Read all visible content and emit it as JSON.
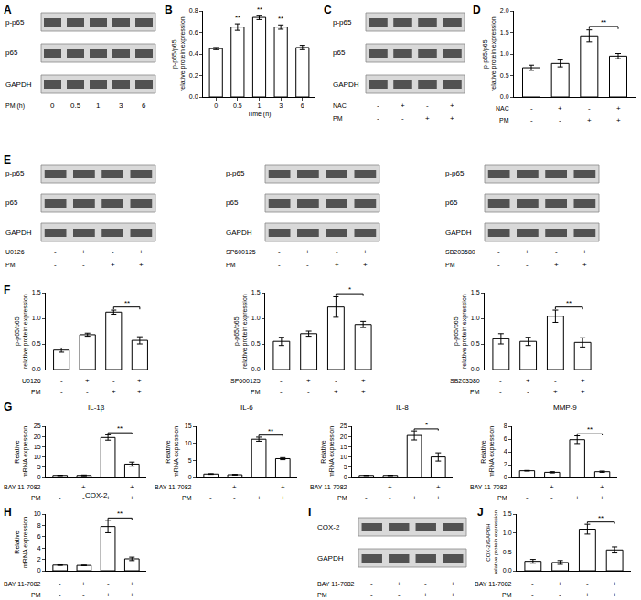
{
  "chart_data": [
    {
      "panel": "B",
      "type": "bar",
      "categories": [
        "0",
        "0.5",
        "1",
        "3",
        "6"
      ],
      "values": [
        0.45,
        0.65,
        0.74,
        0.65,
        0.46
      ],
      "errors": [
        0.01,
        0.03,
        0.02,
        0.02,
        0.02
      ],
      "color": "#ffffff",
      "ylim": [
        0,
        0.8
      ],
      "yticks": [
        {
          "value": 0,
          "label": "0.0"
        },
        {
          "value": 0.2,
          "label": "0.2"
        },
        {
          "value": 0.4,
          "label": "0.4"
        },
        {
          "value": 0.6,
          "label": "0.6"
        },
        {
          "value": 0.8,
          "label": "0.8"
        }
      ],
      "y_label": "p-p65/p65\nrelative protein expression",
      "x_label": "Time (h)",
      "significance": [
        {
          "category": 1,
          "label": "**"
        },
        {
          "category": 2,
          "label": "**"
        },
        {
          "category": 3,
          "label": "**"
        }
      ],
      "grid": false
    },
    {
      "panel": "D",
      "type": "bar",
      "values": [
        0.68,
        0.78,
        1.42,
        0.95
      ],
      "errors": [
        0.06,
        0.08,
        0.14,
        0.06
      ],
      "color": "#ffffff",
      "ylim": [
        0,
        2.0
      ],
      "yticks": [
        {
          "value": 0,
          "label": "0.0"
        },
        {
          "value": 0.5,
          "label": "0.5"
        },
        {
          "value": 1.0,
          "label": "1.0"
        },
        {
          "value": 1.5,
          "label": "1.5"
        },
        {
          "value": 2.0,
          "label": "2.0"
        }
      ],
      "y_label": "p-p65/p65\nrelative protein expression",
      "conditions": [
        {
          "name": "NAC",
          "signs": [
            "-",
            "+",
            "-",
            "+"
          ]
        },
        {
          "name": "PM",
          "signs": [
            "-",
            "-",
            "+",
            "+"
          ]
        }
      ],
      "significance": [
        {
          "from": 2,
          "to": 3,
          "label": "**"
        }
      ],
      "tick_labels": "y",
      "grid": false
    },
    {
      "panel": "F",
      "type": "bar",
      "values": [
        0.38,
        0.68,
        1.12,
        0.57
      ],
      "errors": [
        0.04,
        0.03,
        0.04,
        0.07
      ],
      "color": "#ffffff",
      "ylim": [
        0,
        1.5
      ],
      "yticks": [
        {
          "value": 0,
          "label": "0.0"
        },
        {
          "value": 0.5,
          "label": "0.5"
        },
        {
          "value": 1.0,
          "label": "1.0"
        },
        {
          "value": 1.5,
          "label": "1.5"
        }
      ],
      "y_label": "p-p65/p65\nrelative protein expression",
      "conditions": [
        {
          "name": "U0126",
          "signs": [
            "-",
            "+",
            "-",
            "+"
          ]
        },
        {
          "name": "PM",
          "signs": [
            "-",
            "-",
            "+",
            "+"
          ]
        }
      ],
      "significance": [
        {
          "from": 2,
          "to": 3,
          "label": "**"
        }
      ],
      "tick_labels": "y",
      "grid": false
    },
    {
      "panel": "F",
      "type": "bar",
      "values": [
        0.55,
        0.7,
        1.22,
        0.88
      ],
      "errors": [
        0.08,
        0.05,
        0.2,
        0.06
      ],
      "color": "#ffffff",
      "ylim": [
        0,
        1.5
      ],
      "yticks": [
        {
          "value": 0,
          "label": "0.0"
        },
        {
          "value": 0.5,
          "label": "0.5"
        },
        {
          "value": 1.0,
          "label": "1.0"
        },
        {
          "value": 1.5,
          "label": "1.5"
        }
      ],
      "y_label": "p-p65/p65\nrelative protein expression",
      "conditions": [
        {
          "name": "SP600125",
          "signs": [
            "-",
            "+",
            "-",
            "+"
          ]
        },
        {
          "name": "PM",
          "signs": [
            "-",
            "-",
            "+",
            "+"
          ]
        }
      ],
      "significance": [
        {
          "from": 2,
          "to": 3,
          "label": "*"
        }
      ],
      "tick_labels": "y",
      "grid": false
    },
    {
      "panel": "F",
      "type": "bar",
      "values": [
        0.6,
        0.55,
        1.04,
        0.53
      ],
      "errors": [
        0.1,
        0.08,
        0.12,
        0.09
      ],
      "color": "#ffffff",
      "ylim": [
        0,
        1.5
      ],
      "yticks": [
        {
          "value": 0,
          "label": "0.0"
        },
        {
          "value": 0.5,
          "label": "0.5"
        },
        {
          "value": 1.0,
          "label": "1.0"
        },
        {
          "value": 1.5,
          "label": "1.5"
        }
      ],
      "y_label": "p-p65/p65\nrelative protein expression",
      "conditions": [
        {
          "name": "SB203580",
          "signs": [
            "-",
            "+",
            "-",
            "+"
          ]
        },
        {
          "name": "PM",
          "signs": [
            "-",
            "-",
            "+",
            "+"
          ]
        }
      ],
      "significance": [
        {
          "from": 2,
          "to": 3,
          "label": "**"
        }
      ],
      "tick_labels": "y",
      "grid": false
    },
    {
      "panel": "G",
      "type": "bar",
      "title": "IL-1β",
      "values": [
        1.0,
        1.0,
        19.5,
        6.5
      ],
      "errors": [
        0.1,
        0.2,
        1.3,
        1.0
      ],
      "color": "#ffffff",
      "ylim": [
        0,
        25
      ],
      "yticks": [
        0,
        5,
        10,
        15,
        20,
        25
      ],
      "y_label": "Relative\nmRNA expression",
      "conditions": [
        {
          "name": "BAY 11-7082",
          "signs": [
            "-",
            "+",
            "-",
            "+"
          ]
        },
        {
          "name": "PM",
          "signs": [
            "-",
            "-",
            "+",
            "+"
          ]
        }
      ],
      "significance": [
        {
          "from": 2,
          "to": 3,
          "label": "**"
        }
      ],
      "tick_labels": "y",
      "grid": false
    },
    {
      "panel": "G",
      "type": "bar",
      "title": "IL-6",
      "values": [
        1.0,
        0.8,
        11.2,
        5.5
      ],
      "errors": [
        0.1,
        0.1,
        0.6,
        0.3
      ],
      "color": "#ffffff",
      "ylim": [
        0,
        15
      ],
      "yticks": [
        0,
        5,
        10,
        15
      ],
      "y_label": "Relative\nmRNA expression",
      "conditions": [
        {
          "name": "BAY 11-7082",
          "signs": [
            "-",
            "+",
            "-",
            "+"
          ]
        },
        {
          "name": "PM",
          "signs": [
            "-",
            "-",
            "+",
            "+"
          ]
        }
      ],
      "significance": [
        {
          "from": 2,
          "to": 3,
          "label": "**"
        }
      ],
      "tick_labels": "y",
      "grid": false
    },
    {
      "panel": "G",
      "type": "bar",
      "title": "IL-8",
      "values": [
        1.0,
        1.0,
        20.5,
        10.0
      ],
      "errors": [
        0.1,
        0.1,
        2.2,
        2.0
      ],
      "color": "#ffffff",
      "ylim": [
        0,
        25
      ],
      "yticks": [
        0,
        5,
        10,
        15,
        20,
        25
      ],
      "y_label": "Relative\nmRNA expression",
      "conditions": [
        {
          "name": "BAY 11-7082",
          "signs": [
            "-",
            "+",
            "-",
            "+"
          ]
        },
        {
          "name": "PM",
          "signs": [
            "-",
            "-",
            "+",
            "+"
          ]
        }
      ],
      "significance": [
        {
          "from": 2,
          "to": 3,
          "label": "*"
        }
      ],
      "tick_labels": "y",
      "grid": false
    },
    {
      "panel": "G",
      "type": "bar",
      "title": "MMP-9",
      "values": [
        1.05,
        0.8,
        5.9,
        0.9
      ],
      "errors": [
        0.05,
        0.1,
        0.6,
        0.1
      ],
      "color": "#ffffff",
      "ylim": [
        0,
        8
      ],
      "yticks": [
        0,
        2,
        4,
        6,
        8
      ],
      "y_label": "Relative\nmRNA expression",
      "conditions": [
        {
          "name": "BAY 11-7082",
          "signs": [
            "-",
            "+",
            "-",
            "+"
          ]
        },
        {
          "name": "PM",
          "signs": [
            "-",
            "-",
            "+",
            "+"
          ]
        }
      ],
      "significance": [
        {
          "from": 2,
          "to": 3,
          "label": "**"
        }
      ],
      "tick_labels": "y",
      "grid": false
    },
    {
      "panel": "H",
      "type": "bar",
      "title": "COX-2",
      "values": [
        1.0,
        0.95,
        7.8,
        2.1
      ],
      "errors": [
        0.05,
        0.05,
        1.1,
        0.3
      ],
      "color": "#ffffff",
      "ylim": [
        0,
        10
      ],
      "yticks": [
        0,
        2,
        4,
        6,
        8,
        10
      ],
      "y_label": "Relative\nmRNA expression",
      "conditions": [
        {
          "name": "BAY 11-7082",
          "signs": [
            "-",
            "+",
            "-",
            "+"
          ]
        },
        {
          "name": "PM",
          "signs": [
            "-",
            "-",
            "+",
            "+"
          ]
        }
      ],
      "significance": [
        {
          "from": 2,
          "to": 3,
          "label": "**"
        }
      ],
      "tick_labels": "y",
      "grid": false
    },
    {
      "panel": "J",
      "type": "bar",
      "values": [
        0.25,
        0.22,
        1.1,
        0.55
      ],
      "errors": [
        0.05,
        0.05,
        0.13,
        0.08
      ],
      "color": "#ffffff",
      "ylim": [
        0,
        1.5
      ],
      "yticks": [
        {
          "value": 0,
          "label": "0.0"
        },
        {
          "value": 0.5,
          "label": "0.5"
        },
        {
          "value": 1.0,
          "label": "1.0"
        },
        {
          "value": 1.5,
          "label": "1.5"
        }
      ],
      "y_label": "COX-2/GAPDH\nrelative protein expression",
      "conditions": [
        {
          "name": "BAY 11-7082",
          "signs": [
            "-",
            "+",
            "-",
            "+"
          ]
        },
        {
          "name": "PM",
          "signs": [
            "-",
            "-",
            "+",
            "+"
          ]
        }
      ],
      "significance": [
        {
          "from": 2,
          "to": 3,
          "label": "**"
        }
      ],
      "tick_labels": "y",
      "grid": false
    }
  ],
  "blots": [
    {
      "panel": "A",
      "rows": [
        "p-p65",
        "p65",
        "GAPDH"
      ],
      "conditions": [
        {
          "name": "PM (h)",
          "signs": [
            "0",
            "0.5",
            "1",
            "3",
            "6"
          ]
        }
      ]
    },
    {
      "panel": "C",
      "rows": [
        "p-p65",
        "p65",
        "GAPDH"
      ],
      "conditions": [
        {
          "name": "NAC",
          "signs": [
            "-",
            "+",
            "-",
            "+"
          ]
        },
        {
          "name": "PM",
          "signs": [
            "-",
            "-",
            "+",
            "+"
          ]
        }
      ]
    },
    {
      "panel": "E",
      "rows": [
        "p-p65",
        "p65",
        "GAPDH"
      ],
      "conditions": [
        {
          "name": "U0126",
          "signs": [
            "-",
            "+",
            "-",
            "+"
          ]
        },
        {
          "name": "PM",
          "signs": [
            "-",
            "-",
            "+",
            "+"
          ]
        }
      ]
    },
    {
      "panel": "E",
      "rows": [
        "p-p65",
        "p65",
        "GAPDH"
      ],
      "conditions": [
        {
          "name": "SP600125",
          "signs": [
            "-",
            "+",
            "-",
            "+"
          ]
        },
        {
          "name": "PM",
          "signs": [
            "-",
            "-",
            "+",
            "+"
          ]
        }
      ]
    },
    {
      "panel": "E",
      "rows": [
        "p-p65",
        "p65",
        "GAPDH"
      ],
      "conditions": [
        {
          "name": "SB203580",
          "signs": [
            "-",
            "+",
            "-",
            "+"
          ]
        },
        {
          "name": "PM",
          "signs": [
            "-",
            "-",
            "+",
            "+"
          ]
        }
      ]
    },
    {
      "panel": "I",
      "rows": [
        "COX-2",
        "GAPDH"
      ],
      "conditions": [
        {
          "name": "BAY 11-7082",
          "signs": [
            "-",
            "+",
            "-",
            "+"
          ]
        },
        {
          "name": "PM",
          "signs": [
            "-",
            "-",
            "+",
            "+"
          ]
        }
      ]
    }
  ]
}
